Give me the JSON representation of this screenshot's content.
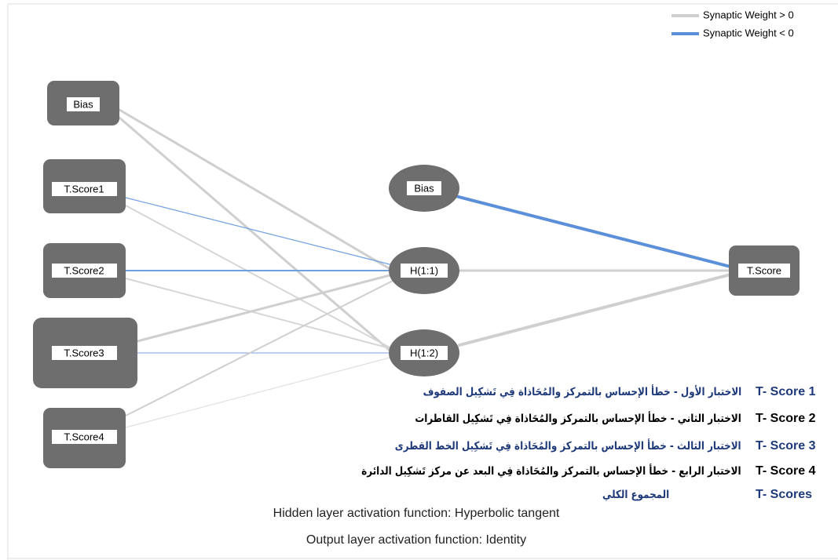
{
  "legend": [
    {
      "label": "Synaptic Weight > 0"
    },
    {
      "label": "Synaptic Weight < 0"
    }
  ],
  "input_layer": [
    "Bias",
    "T.Score1",
    "T.Score2",
    "T.Score3",
    "T.Score4"
  ],
  "hidden_layer": [
    "Bias",
    "H(1:1)",
    "H(1:2)"
  ],
  "output_layer": [
    "T.Score"
  ],
  "key": [
    {
      "code": "T- Score 1",
      "description": "الاختبار الأول - خطأ الإحساس بالتمركز والمُحَاذاة فِي تَشكِيل الصفوف"
    },
    {
      "code": "T- Score 2",
      "description": "الاختبار الثاني - خطأ الإحساس بالتمركز والمُحَاذاة فِي تَشكِيل القاطرات"
    },
    {
      "code": "T- Score 3",
      "description": "الاختبار الثالث - خطأ الإحساس بالتمركز والمُحَاذاة فِي تَشكِيل الخط القطرى"
    },
    {
      "code": "T- Score 4",
      "description": "الاختبار الرابع - خطأ الإحساس بالتمركز والمُحَاذاة فِي البعد عن مركز تَشكِيل الدائرة"
    },
    {
      "code": "T- Scores",
      "description": "المجموع الكلي"
    }
  ],
  "notes": [
    "Hidden layer activation function: Hyperbolic tangent",
    "Output layer activation function: Identity"
  ]
}
